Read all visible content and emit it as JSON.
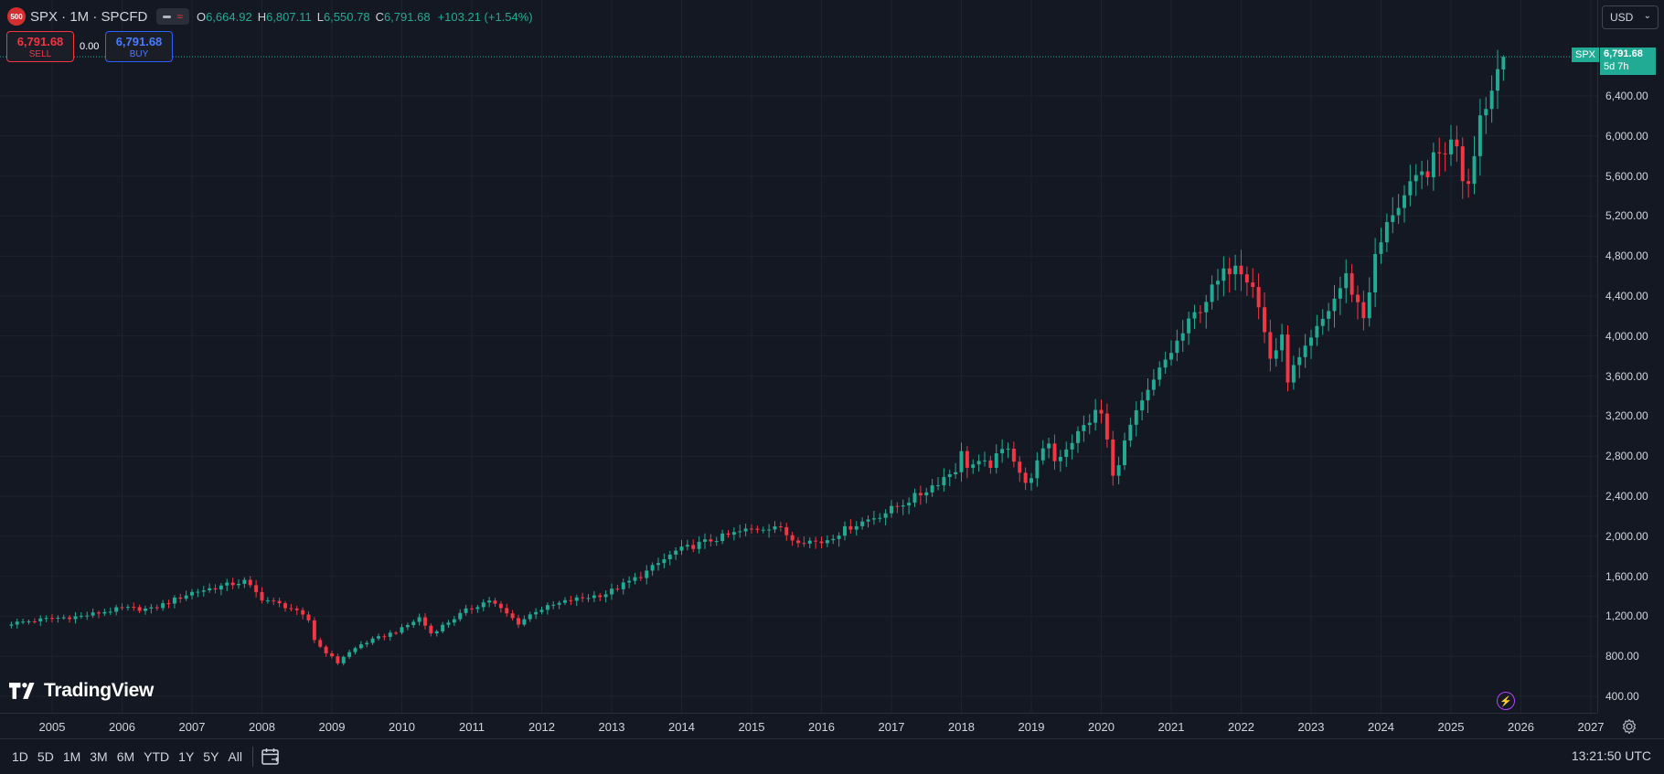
{
  "legend": {
    "badge": "500",
    "symbol": "SPX · 1M · SPCFD",
    "open_label": "O",
    "open": "6,664.92",
    "high_label": "H",
    "high": "6,807.11",
    "low_label": "L",
    "low": "6,550.78",
    "close_label": "C",
    "close": "6,791.68",
    "change": "+103.21 (+1.54%)"
  },
  "trade": {
    "sell_price": "6,791.68",
    "sell_label": "SELL",
    "spread": "0.00",
    "buy_price": "6,791.68",
    "buy_label": "BUY"
  },
  "currency": "USD",
  "price_label": {
    "symbol": "SPX",
    "value": "6,791.68",
    "countdown": "5d 7h"
  },
  "price_axis": [
    "6,400.00",
    "6,000.00",
    "5,600.00",
    "5,200.00",
    "4,800.00",
    "4,400.00",
    "4,000.00",
    "3,600.00",
    "3,200.00",
    "2,800.00",
    "2,400.00",
    "2,000.00",
    "1,600.00",
    "1,200.00",
    "800.00",
    "400.00"
  ],
  "time_axis": [
    "2005",
    "2006",
    "2007",
    "2008",
    "2009",
    "2010",
    "2011",
    "2012",
    "2013",
    "2014",
    "2015",
    "2016",
    "2017",
    "2018",
    "2019",
    "2020",
    "2021",
    "2022",
    "2023",
    "2024",
    "2025",
    "2026",
    "2027"
  ],
  "logo_text": "TradingView",
  "toolbar": {
    "ranges": [
      "1D",
      "5D",
      "1M",
      "3M",
      "6M",
      "YTD",
      "1Y",
      "5Y",
      "All"
    ]
  },
  "clock": "13:21:50 UTC",
  "colors": {
    "up": "#22ab94",
    "down": "#f23645",
    "background": "#141823",
    "grid": "#1e222d"
  },
  "icons": {
    "date_range": "calendar-icon",
    "settings": "gear-icon",
    "alert": "lightning-icon"
  },
  "chart_data": {
    "type": "candlestick",
    "interval": "1M",
    "ylim": [
      400,
      6800
    ],
    "x_range": [
      "2004-06",
      "2026-12"
    ],
    "anchors": [
      [
        "2004-06",
        1130
      ],
      [
        "2005-01",
        1180
      ],
      [
        "2005-06",
        1200
      ],
      [
        "2006-01",
        1280
      ],
      [
        "2006-06",
        1270
      ],
      [
        "2007-01",
        1440
      ],
      [
        "2007-06",
        1500
      ],
      [
        "2007-10",
        1549
      ],
      [
        "2008-01",
        1378
      ],
      [
        "2008-06",
        1280
      ],
      [
        "2008-09",
        1160
      ],
      [
        "2008-10",
        968
      ],
      [
        "2008-11",
        896
      ],
      [
        "2009-02",
        735
      ],
      [
        "2009-03",
        798
      ],
      [
        "2009-06",
        919
      ],
      [
        "2010-01",
        1073
      ],
      [
        "2010-04",
        1186
      ],
      [
        "2010-06",
        1030
      ],
      [
        "2010-12",
        1257
      ],
      [
        "2011-04",
        1363
      ],
      [
        "2011-09",
        1131
      ],
      [
        "2011-12",
        1257
      ],
      [
        "2012-06",
        1362
      ],
      [
        "2012-12",
        1426
      ],
      [
        "2013-06",
        1606
      ],
      [
        "2013-12",
        1848
      ],
      [
        "2014-06",
        1960
      ],
      [
        "2014-12",
        2058
      ],
      [
        "2015-05",
        2107
      ],
      [
        "2015-08",
        1972
      ],
      [
        "2016-01",
        1940
      ],
      [
        "2016-06",
        2098
      ],
      [
        "2016-12",
        2238
      ],
      [
        "2017-06",
        2423
      ],
      [
        "2017-12",
        2673
      ],
      [
        "2018-01",
        2823
      ],
      [
        "2018-02",
        2713
      ],
      [
        "2018-06",
        2718
      ],
      [
        "2018-09",
        2913
      ],
      [
        "2018-12",
        2506
      ],
      [
        "2019-04",
        2945
      ],
      [
        "2019-05",
        2752
      ],
      [
        "2019-12",
        3230
      ],
      [
        "2020-01",
        3225
      ],
      [
        "2020-02",
        2954
      ],
      [
        "2020-03",
        2584
      ],
      [
        "2020-06",
        3100
      ],
      [
        "2020-12",
        3756
      ],
      [
        "2021-06",
        4297
      ],
      [
        "2021-12",
        4766
      ],
      [
        "2022-03",
        4530
      ],
      [
        "2022-06",
        3785
      ],
      [
        "2022-08",
        3955
      ],
      [
        "2022-09",
        3585
      ],
      [
        "2022-12",
        3839
      ],
      [
        "2023-07",
        4588
      ],
      [
        "2023-10",
        4193
      ],
      [
        "2023-12",
        4769
      ],
      [
        "2024-03",
        5254
      ],
      [
        "2024-06",
        5460
      ],
      [
        "2024-12",
        5881
      ],
      [
        "2025-02",
        5954
      ],
      [
        "2025-03",
        5611
      ],
      [
        "2025-04",
        5569
      ],
      [
        "2025-06",
        6204
      ],
      [
        "2025-08",
        6460
      ],
      [
        "2025-09",
        6688
      ],
      [
        "2025-10",
        6791.68
      ]
    ],
    "last_candle": {
      "open": 6664.92,
      "high": 6807.11,
      "low": 6550.78,
      "close": 6791.68
    }
  }
}
